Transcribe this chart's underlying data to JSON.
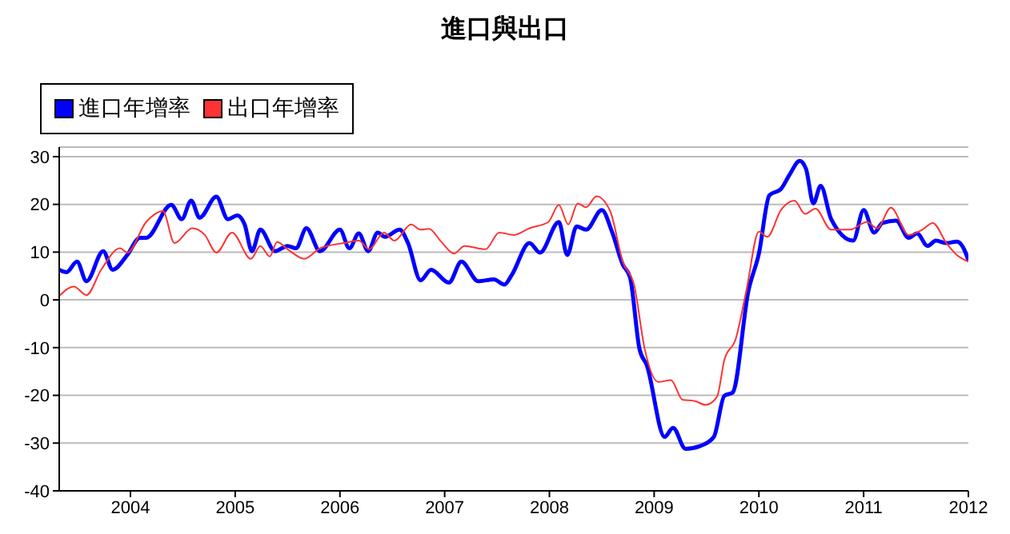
{
  "chart_data": {
    "type": "line",
    "title": "進口與出口",
    "legend": "top left",
    "grid": "y",
    "marker": "none",
    "line_style": "solid",
    "xlim": [
      2003.32,
      2012
    ],
    "xticks": [
      2004,
      2005,
      2006,
      2007,
      2008,
      2009,
      2010,
      2011,
      2012
    ],
    "ylim": [
      -40,
      32
    ],
    "yticks": [
      -40,
      -30,
      -20,
      -10,
      0,
      10,
      20,
      30
    ],
    "series": [
      {
        "name": "進口年增率",
        "color": "#0000ff",
        "x": [
          2003.32,
          2003.39,
          2003.49,
          2003.58,
          2003.74,
          2003.83,
          2003.97,
          2004.09,
          2004.15,
          2004.39,
          2004.49,
          2004.58,
          2004.66,
          2004.82,
          2004.93,
          2005.02,
          2005.09,
          2005.16,
          2005.24,
          2005.38,
          2005.5,
          2005.58,
          2005.68,
          2005.81,
          2006.0,
          2006.09,
          2006.18,
          2006.27,
          2006.36,
          2006.43,
          2006.57,
          2006.65,
          2006.77,
          2006.87,
          2007.04,
          2007.16,
          2007.32,
          2007.47,
          2007.57,
          2007.64,
          2007.81,
          2007.91,
          2008.09,
          2008.17,
          2008.26,
          2008.35,
          2008.5,
          2008.6,
          2008.7,
          2008.77,
          2008.86,
          2008.93,
          2009.1,
          2009.18,
          2009.3,
          2009.44,
          2009.57,
          2009.67,
          2009.75,
          2009.9,
          2010.0,
          2010.1,
          2010.21,
          2010.29,
          2010.39,
          2010.45,
          2010.52,
          2010.59,
          2010.69,
          2010.9,
          2011.0,
          2011.1,
          2011.18,
          2011.31,
          2011.43,
          2011.51,
          2011.61,
          2011.69,
          2011.79,
          2011.89,
          2011.95,
          2012.0
        ],
        "values": [
          6.3,
          5.8,
          8.0,
          3.9,
          10.2,
          6.3,
          9.4,
          13,
          13,
          19.9,
          16.9,
          20.8,
          17.2,
          21.6,
          16.9,
          17.7,
          15.8,
          10.2,
          14.7,
          10.2,
          11.3,
          10.8,
          15,
          10.2,
          14.7,
          10.8,
          13.9,
          10.2,
          14.1,
          13.2,
          14.7,
          11.9,
          4.1,
          6.3,
          3.6,
          8,
          3.9,
          4.3,
          3.2,
          5.2,
          11.9,
          9.9,
          16.3,
          9.4,
          15.4,
          14.7,
          18.8,
          14.1,
          7.4,
          4.7,
          -10.3,
          -13.7,
          -28.7,
          -26.8,
          -31.2,
          -30.6,
          -28.7,
          -20.1,
          -19.4,
          1.9,
          9.7,
          21.9,
          23.2,
          26.1,
          29.1,
          27.4,
          20.2,
          23.9,
          16.9,
          12.4,
          18.8,
          14.1,
          16.1,
          16.6,
          13,
          13.9,
          11.3,
          12.4,
          11.9,
          12.2,
          11,
          8.3
        ]
      },
      {
        "name": "出口年增率",
        "color": "#ff3333",
        "x": [
          2003.32,
          2003.46,
          2003.58,
          2003.72,
          2003.9,
          2003.97,
          2004.15,
          2004.31,
          2004.42,
          2004.59,
          2004.71,
          2004.82,
          2004.97,
          2005.15,
          2005.24,
          2005.33,
          2005.4,
          2005.5,
          2005.66,
          2005.81,
          2006.04,
          2006.18,
          2006.28,
          2006.42,
          2006.52,
          2006.68,
          2006.77,
          2006.85,
          2006.97,
          2007.09,
          2007.19,
          2007.39,
          2007.52,
          2007.66,
          2007.81,
          2007.99,
          2008.09,
          2008.18,
          2008.27,
          2008.35,
          2008.45,
          2008.58,
          2008.7,
          2008.81,
          2008.91,
          2009.04,
          2009.16,
          2009.27,
          2009.39,
          2009.49,
          2009.6,
          2009.67,
          2009.78,
          2009.88,
          2010.0,
          2010.08,
          2010.21,
          2010.34,
          2010.44,
          2010.54,
          2010.69,
          2010.87,
          2011.03,
          2011.13,
          2011.26,
          2011.43,
          2011.56,
          2011.66,
          2011.79,
          2011.89,
          2012.0
        ],
        "values": [
          0.8,
          2.8,
          1.0,
          6.3,
          10.8,
          9.9,
          16.3,
          18.6,
          11.9,
          15,
          13.6,
          9.9,
          14.1,
          8.6,
          11.3,
          9.1,
          12.1,
          10.6,
          8.6,
          10.8,
          11.9,
          12.4,
          10.6,
          14.1,
          12.4,
          15.8,
          14.7,
          14.9,
          12.1,
          9.7,
          11.3,
          10.6,
          14.1,
          13.6,
          15,
          16.3,
          19.9,
          15.8,
          20.2,
          19.4,
          21.7,
          18.6,
          8,
          3,
          -10.3,
          -17.2,
          -16.8,
          -20.9,
          -21.2,
          -22,
          -20.3,
          -12.6,
          -8.1,
          1.9,
          14.3,
          13.2,
          18.8,
          20.8,
          18,
          19.1,
          14.7,
          14.7,
          16.3,
          15,
          19.3,
          13.6,
          14.7,
          16.1,
          11.9,
          9.4,
          8
        ]
      }
    ]
  }
}
